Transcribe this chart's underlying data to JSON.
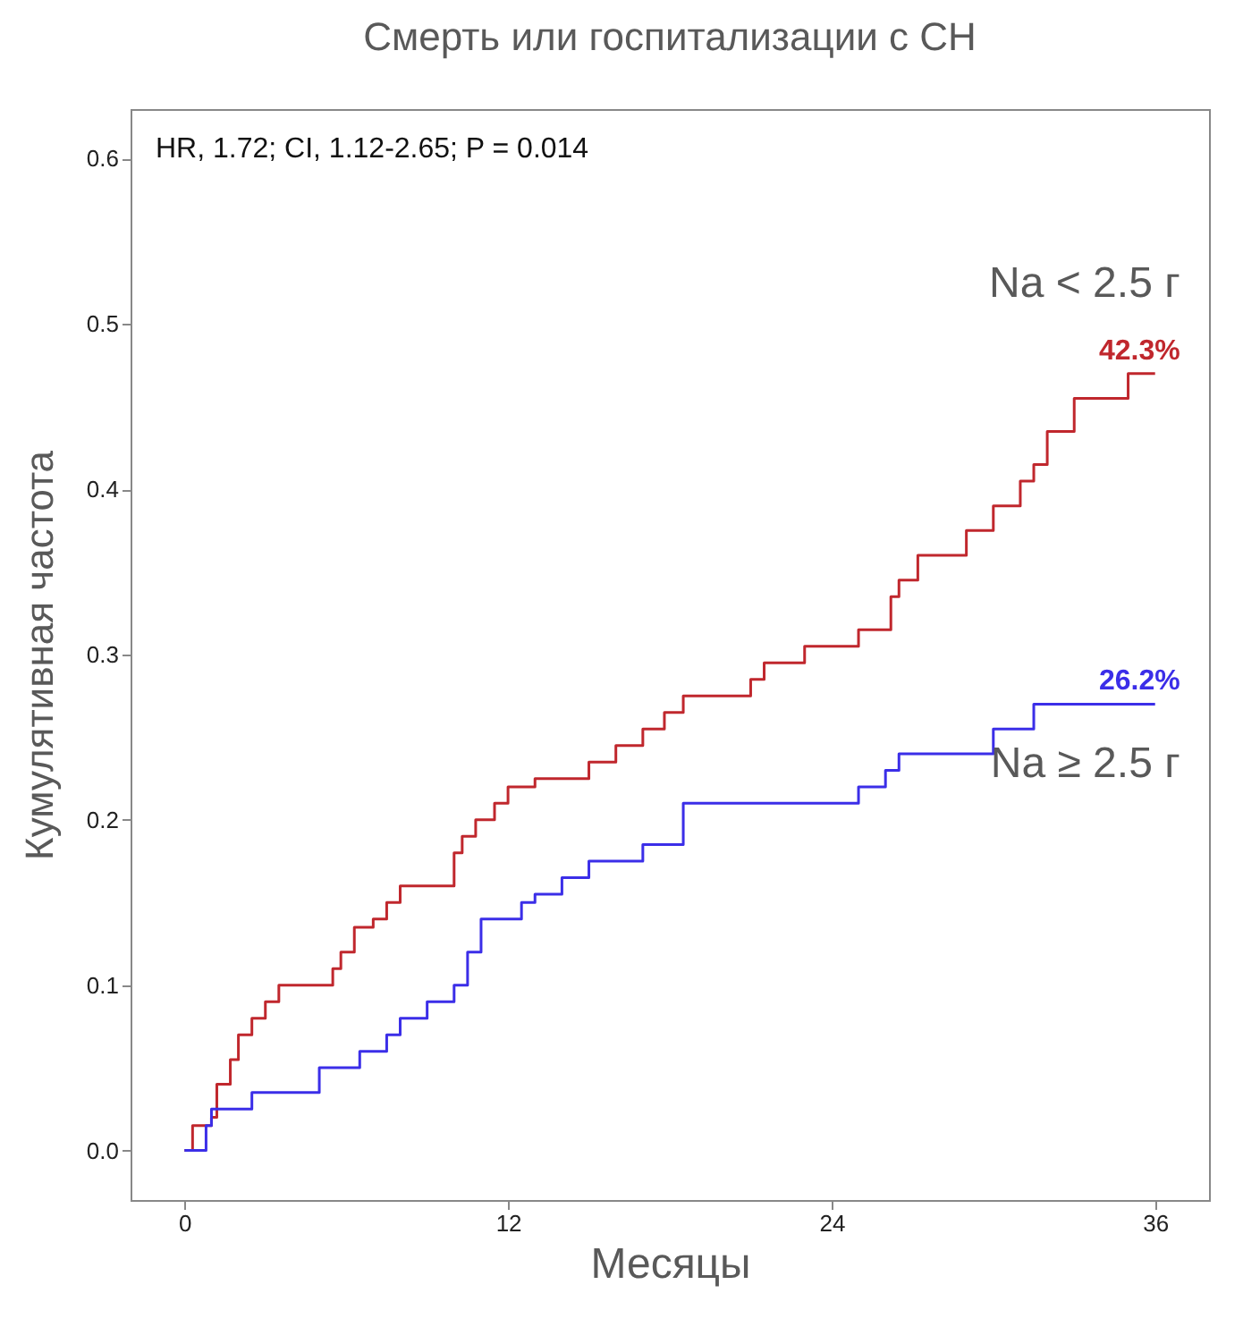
{
  "chart_data": {
    "type": "step",
    "title": "Смерть или госпитализации с СН",
    "xlabel": "Месяцы",
    "ylabel": "Кумулятивная частота",
    "xlim": [
      -2,
      38
    ],
    "xticks": [
      0,
      12,
      24,
      36
    ],
    "ylim": [
      -0.03,
      0.63
    ],
    "yticks": [
      {
        "value": 0,
        "label": "0.0"
      },
      {
        "value": 0.1,
        "label": "0.1"
      },
      {
        "value": 0.2,
        "label": "0.2"
      },
      {
        "value": 0.3,
        "label": "0.3"
      },
      {
        "value": 0.4,
        "label": "0.4"
      },
      {
        "value": 0.5,
        "label": "0.5"
      },
      {
        "value": 0.6,
        "label": "0.6"
      }
    ],
    "grid": false,
    "legend": false,
    "series": [
      {
        "name": "Na < 2.5 г",
        "color": "#c0272d",
        "x": [
          0,
          0.3,
          1.0,
          1.2,
          1.7,
          2.0,
          2.5,
          3.0,
          3.5,
          5.5,
          5.8,
          6.3,
          7.0,
          7.5,
          8.0,
          10.0,
          10.3,
          10.8,
          11.5,
          12.0,
          13.0,
          15.0,
          16.0,
          17.0,
          17.8,
          18.5,
          21.0,
          21.5,
          23.0,
          25.0,
          26.2,
          26.5,
          27.2,
          29.0,
          30.0,
          31.0,
          31.5,
          32.0,
          33.0,
          35.0,
          36.0
        ],
        "values": [
          0,
          0.015,
          0.02,
          0.04,
          0.055,
          0.07,
          0.08,
          0.09,
          0.1,
          0.11,
          0.12,
          0.135,
          0.14,
          0.15,
          0.16,
          0.18,
          0.19,
          0.2,
          0.21,
          0.22,
          0.225,
          0.235,
          0.245,
          0.255,
          0.265,
          0.275,
          0.285,
          0.295,
          0.305,
          0.315,
          0.335,
          0.345,
          0.36,
          0.375,
          0.39,
          0.405,
          0.415,
          0.435,
          0.455,
          0.47,
          0.47
        ]
      },
      {
        "name": "Na ≥ 2.5 г",
        "color": "#3b2ee8",
        "x": [
          0,
          0.8,
          1.0,
          2.5,
          5.0,
          6.5,
          7.5,
          8.0,
          9.0,
          10.0,
          10.5,
          11.0,
          12.5,
          13.0,
          14.0,
          15.0,
          17.0,
          18.5,
          24.5,
          25.0,
          26.0,
          26.5,
          30.0,
          31.5,
          36.0
        ],
        "values": [
          0,
          0.015,
          0.025,
          0.035,
          0.05,
          0.06,
          0.07,
          0.08,
          0.09,
          0.1,
          0.12,
          0.14,
          0.15,
          0.155,
          0.165,
          0.175,
          0.185,
          0.21,
          0.21,
          0.22,
          0.23,
          0.24,
          0.255,
          0.27,
          0.27
        ]
      }
    ],
    "annotations": [
      "HR, 1.72; CI, 1.12-2.65; P = 0.014",
      "42.3%",
      "26.2%"
    ]
  }
}
